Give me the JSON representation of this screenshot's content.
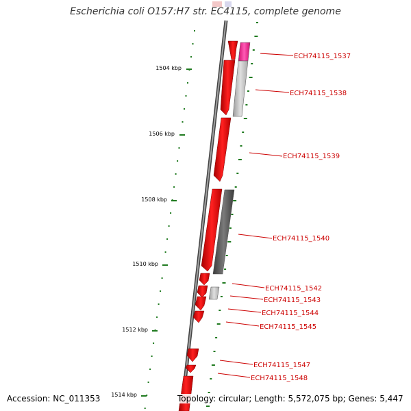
{
  "title": "Escherichia coli O157:H7 str. EC4115, complete genome",
  "accession": "Accession: NC_011353",
  "summary": "Topology: circular; Length: 5,572,075 bp; Genes: 5,447",
  "colors": {
    "backbone": "#7a7a7a",
    "gene_red": "#ee0000",
    "gene_pink": "#ff2d9b",
    "gene_gray_light": "#c8c8c8",
    "gene_gray_dark": "#666666",
    "tick_green": "#1f7a1f",
    "label_red": "#cc0000"
  },
  "position_labels": [
    "1504 kbp",
    "1506 kbp",
    "1508 kbp",
    "1510 kbp",
    "1512 kbp",
    "1514 kbp"
  ],
  "gene_labels": [
    "ECH74115_1537",
    "ECH74115_1538",
    "ECH74115_1539",
    "ECH74115_1540",
    "ECH74115_1542",
    "ECH74115_1543",
    "ECH74115_1544",
    "ECH74115_1545",
    "ECH74115_1547",
    "ECH74115_1548"
  ]
}
